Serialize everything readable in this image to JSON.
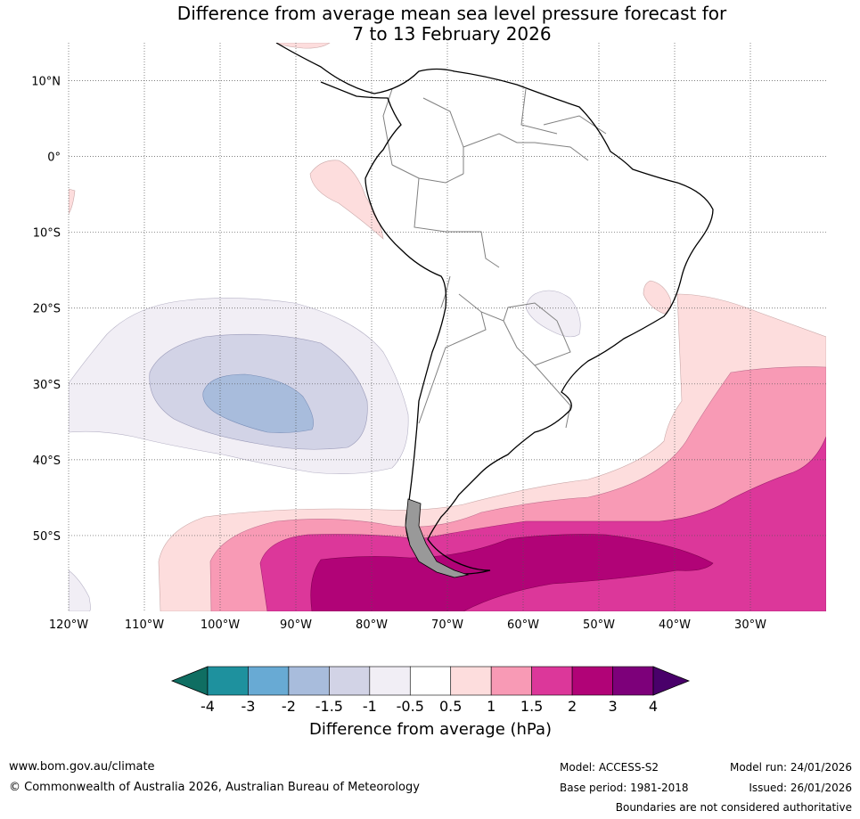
{
  "title": {
    "line1": "Difference from average mean sea level pressure forecast for",
    "line2": "7 to 13 February 2026"
  },
  "axes": {
    "lat_labels": [
      "10°N",
      "0°",
      "10°S",
      "20°S",
      "30°S",
      "40°S",
      "50°S"
    ],
    "lon_labels": [
      "120°W",
      "110°W",
      "100°W",
      "90°W",
      "80°W",
      "70°W",
      "60°W",
      "50°W",
      "40°W",
      "30°W"
    ]
  },
  "map_extent": {
    "lon_min": -120,
    "lon_max": -20,
    "lat_min": -60,
    "lat_max": 15
  },
  "colorbar": {
    "ticks": [
      "-4",
      "-3",
      "-2",
      "-1.5",
      "-1",
      "-0.5",
      "0.5",
      "1",
      "1.5",
      "2",
      "3",
      "4"
    ],
    "colors": [
      "#0f6e62",
      "#1e919e",
      "#68aad4",
      "#a8bcdc",
      "#d2d3e6",
      "#f1eef5",
      "#ffffff",
      "#fddddd",
      "#f89ab5",
      "#dc379a",
      "#b10377",
      "#7d007a",
      "#49006a"
    ],
    "label": "Difference from average (hPa)"
  },
  "footer": {
    "website": "www.bom.gov.au/climate",
    "copyright": "© Commonwealth of Australia 2026, Australian Bureau of Meteorology",
    "model": "Model: ACCESS-S2",
    "base_period": "Base period: 1981-2018",
    "model_run": "Model run: 24/01/2026",
    "issued": "Issued: 26/01/2026",
    "disclaimer": "Boundaries are not considered authoritative"
  }
}
